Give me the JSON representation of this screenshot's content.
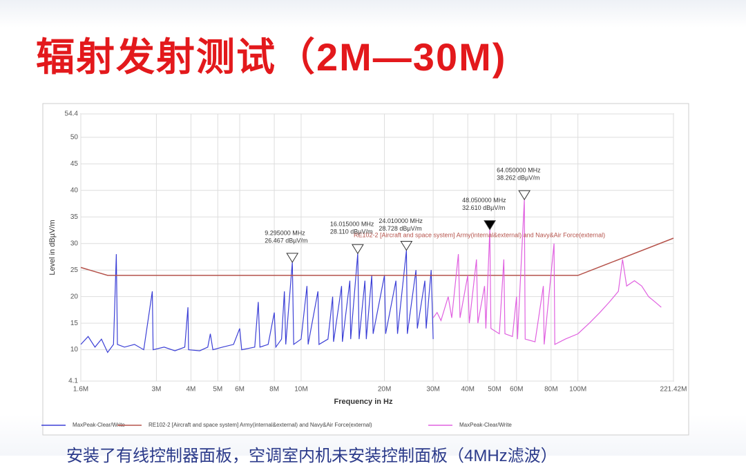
{
  "chart_data": {
    "type": "line",
    "title": "辐射发射测试（2M—30M)",
    "caption": "安装了有线控制器面板，空调室内机未安装控制面板（4MHz滤波）",
    "xlabel": "Frequency in Hz",
    "ylabel": "Level in dBµV/m",
    "xscale": "log",
    "grid": true,
    "xlim": [
      1.6,
      221.42
    ],
    "ylim": [
      4.1,
      54.4
    ],
    "xticks": [
      {
        "value": 1.6,
        "label": "1.6M"
      },
      {
        "value": 3,
        "label": "3M"
      },
      {
        "value": 4,
        "label": "4M"
      },
      {
        "value": 5,
        "label": "5M"
      },
      {
        "value": 6,
        "label": "6M"
      },
      {
        "value": 8,
        "label": "8M"
      },
      {
        "value": 10,
        "label": "10M"
      },
      {
        "value": 20,
        "label": "20M"
      },
      {
        "value": 30,
        "label": "30M"
      },
      {
        "value": 40,
        "label": "40M"
      },
      {
        "value": 50,
        "label": "50M"
      },
      {
        "value": 60,
        "label": "60M"
      },
      {
        "value": 80,
        "label": "80M"
      },
      {
        "value": 100,
        "label": "100M"
      },
      {
        "value": 221.42,
        "label": "221.42M"
      }
    ],
    "yticks": [
      4.1,
      10,
      15,
      20,
      25,
      30,
      35,
      40,
      45,
      50,
      54.4
    ],
    "series": [
      {
        "name": "MaxPeak-Clear/Write",
        "color": "#3b3fd6",
        "x": [
          1.6,
          1.7,
          1.8,
          1.9,
          2.0,
          2.1,
          2.15,
          2.17,
          2.3,
          2.5,
          2.7,
          2.9,
          2.92,
          3.2,
          3.5,
          3.8,
          3.9,
          3.92,
          4.3,
          4.6,
          4.7,
          4.8,
          5.2,
          5.7,
          6.0,
          6.1,
          6.8,
          7.0,
          7.1,
          7.6,
          8.0,
          8.1,
          8.5,
          8.7,
          8.8,
          9.295,
          9.4,
          10,
          10.5,
          10.6,
          11.5,
          11.6,
          12.5,
          13,
          13.1,
          14,
          14.1,
          15,
          15.1,
          16.015,
          16.2,
          17,
          17.2,
          18,
          18.2,
          20,
          20.2,
          22,
          22.3,
          24.01,
          24.2,
          26,
          26.3,
          28,
          28.3,
          29.5,
          30
        ],
        "values": [
          11,
          12.5,
          10.5,
          12,
          9.5,
          11,
          28,
          11,
          10.5,
          11,
          10,
          21,
          10,
          10.5,
          9.8,
          10.5,
          18,
          10,
          9.8,
          10.5,
          13,
          10,
          10.5,
          11,
          14,
          10,
          10.5,
          19,
          10.5,
          11,
          17,
          10.5,
          12,
          21,
          11,
          26.467,
          11,
          12,
          22,
          11,
          21,
          11,
          12,
          20,
          11.5,
          22,
          11.5,
          23,
          12,
          28.11,
          12,
          23,
          12,
          24,
          13,
          24,
          13,
          23,
          13,
          28.728,
          13,
          25,
          14,
          23,
          14,
          25,
          12
        ]
      },
      {
        "name": "RE102-2 [Aircraft and space system] Army(internal&external) and Navy&Air Force(external)",
        "color": "#b5524a",
        "x": [
          1.6,
          2.0,
          100,
          221.42
        ],
        "values": [
          25.5,
          24,
          24,
          31
        ]
      },
      {
        "name": "MaxPeak-Clear/Write",
        "color": "#e060e0",
        "x": [
          30,
          31,
          32,
          34,
          35,
          37,
          37.5,
          40,
          40.5,
          43,
          43.5,
          46,
          46.5,
          48.05,
          48.5,
          52,
          54,
          54.5,
          58,
          60,
          60.5,
          64.05,
          64.5,
          70,
          75,
          75.5,
          82,
          82.5,
          90,
          100,
          110,
          120,
          130,
          140,
          145,
          150,
          160,
          170,
          180,
          190,
          200
        ],
        "values": [
          16,
          17,
          15.5,
          20,
          16,
          28,
          16,
          24,
          15,
          27,
          15,
          22,
          14,
          32.61,
          14,
          13,
          27,
          13,
          12.5,
          20,
          12,
          38.262,
          12,
          11.5,
          22,
          11,
          30,
          11,
          12,
          13,
          15,
          17,
          19,
          21,
          27,
          22,
          23,
          22,
          20,
          19,
          18
        ]
      }
    ],
    "annotations": [
      {
        "x": 9.295,
        "y": 26.467,
        "label": "9.295000 MHz",
        "sublabel": "26.467 dBµV/m",
        "filled": false
      },
      {
        "x": 16.015,
        "y": 28.11,
        "label": "16.015000 MHz",
        "sublabel": "28.110 dBµV/m",
        "filled": false
      },
      {
        "x": 24.01,
        "y": 28.728,
        "label": "24.010000 MHz",
        "sublabel": "28.728 dBµV/m",
        "filled": false
      },
      {
        "x": 48.05,
        "y": 32.61,
        "label": "48.050000 MHz",
        "sublabel": "32.610 dBµV/m",
        "filled": true
      },
      {
        "x": 64.05,
        "y": 38.262,
        "label": "64.050000 MHz",
        "sublabel": "38.262 dBµV/m",
        "filled": false
      }
    ]
  }
}
